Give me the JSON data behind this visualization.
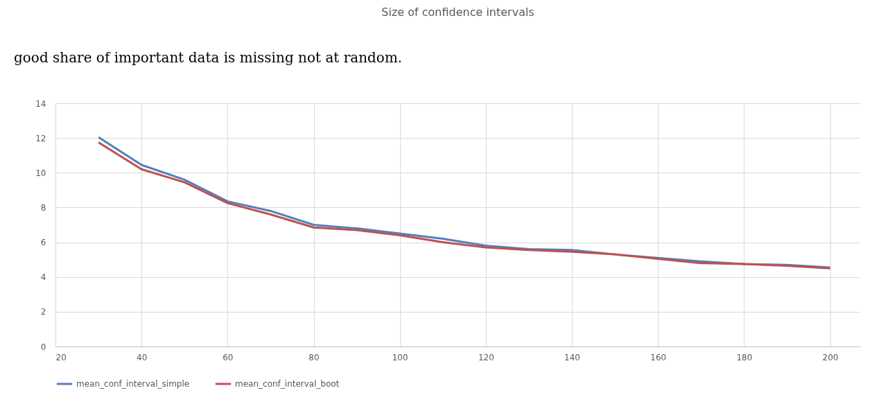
{
  "chart_data": {
    "type": "line",
    "title": "Size of confidence intervals",
    "annotations": [
      "good share of important data is missing not at random."
    ],
    "x": [
      30,
      40,
      50,
      60,
      70,
      80,
      90,
      100,
      110,
      120,
      130,
      140,
      150,
      160,
      170,
      180,
      190,
      200
    ],
    "series": [
      {
        "name": "mean_conf_interval_simple",
        "color": "#4f81bd",
        "values": [
          12.05,
          10.45,
          9.6,
          8.35,
          7.8,
          7.0,
          6.8,
          6.5,
          6.2,
          5.8,
          5.6,
          5.55,
          5.3,
          5.1,
          4.9,
          4.75,
          4.7,
          4.55
        ]
      },
      {
        "name": "mean_conf_interval_boot",
        "color": "#c0504d",
        "values": [
          11.75,
          10.2,
          9.45,
          8.25,
          7.6,
          6.85,
          6.7,
          6.4,
          6.0,
          5.7,
          5.55,
          5.45,
          5.3,
          5.05,
          4.8,
          4.75,
          4.65,
          4.5
        ]
      }
    ],
    "xlim": [
      20,
      207
    ],
    "xticks": [
      20,
      40,
      60,
      80,
      100,
      120,
      140,
      160,
      180,
      200
    ],
    "ylim": [
      0,
      14
    ],
    "yticks": [
      0,
      2,
      4,
      6,
      8,
      10,
      12,
      14
    ],
    "grid": true,
    "legend": "bottom",
    "marker": "none",
    "line_style": "solid"
  }
}
